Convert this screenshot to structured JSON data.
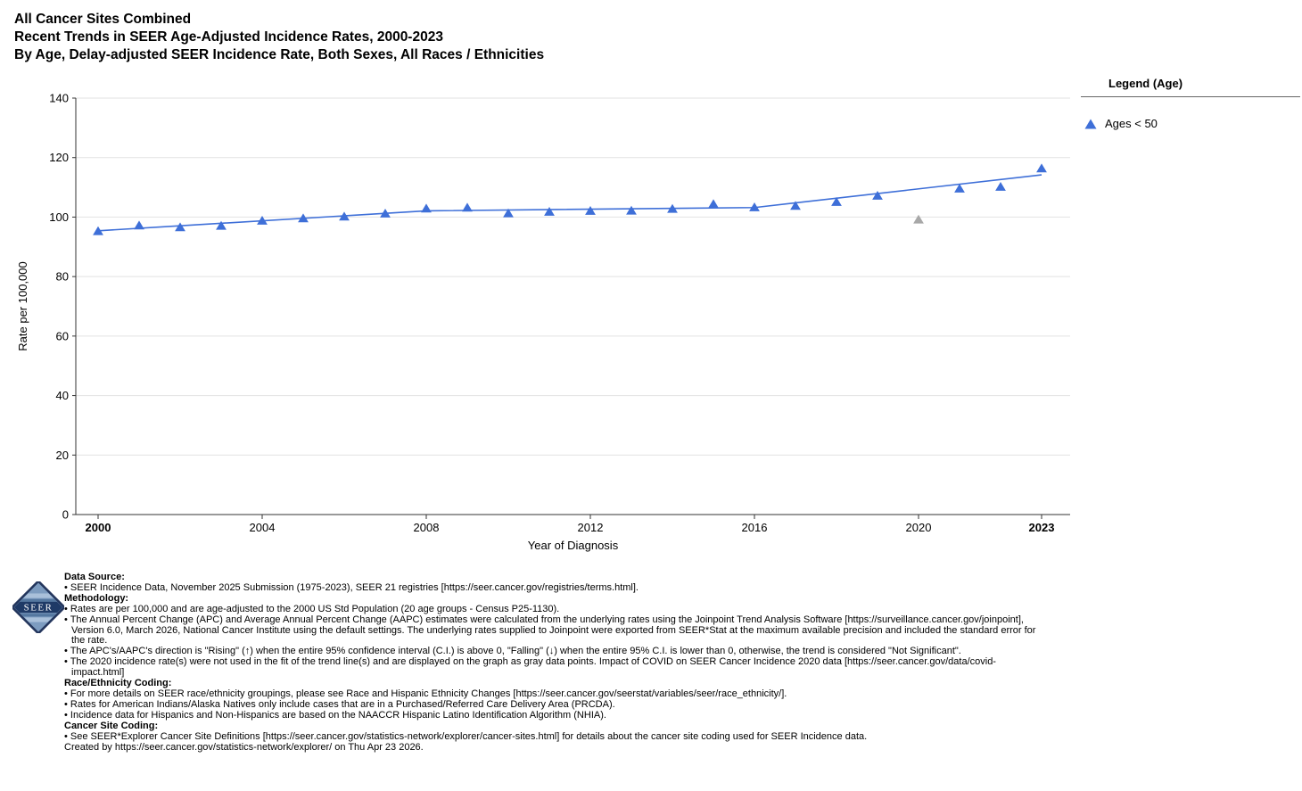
{
  "header": {
    "title_line1": "All Cancer Sites Combined",
    "title_line2": "Recent Trends in SEER Age-Adjusted Incidence Rates, 2000-2023",
    "title_line3": "By Age, Delay-adjusted SEER Incidence Rate, Both Sexes, All Races / Ethnicities"
  },
  "legend": {
    "title": "Legend (Age)",
    "items": [
      {
        "label": "Ages < 50",
        "color": "#3E6FD8",
        "marker": "triangle"
      }
    ]
  },
  "chart_data": {
    "type": "line",
    "title": "Recent Trends in SEER Age-Adjusted Incidence Rates, 2000-2023",
    "xlabel": "Year of Diagnosis",
    "ylabel": "Rate per 100,000",
    "ylim": [
      0,
      140
    ],
    "yticks": [
      0,
      20,
      40,
      60,
      80,
      100,
      120,
      140
    ],
    "xticks": [
      2000,
      2004,
      2008,
      2012,
      2016,
      2020,
      2023
    ],
    "xticks_bold": [
      2000,
      2023
    ],
    "grid": "horizontal",
    "legend_position": "right",
    "x_start": 2000,
    "series": [
      {
        "name": "Ages < 50",
        "color": "#3E6FD8",
        "x": [
          2000,
          2001,
          2002,
          2003,
          2004,
          2005,
          2006,
          2007,
          2008,
          2009,
          2010,
          2011,
          2012,
          2013,
          2014,
          2015,
          2016,
          2017,
          2018,
          2019,
          2020,
          2021,
          2022,
          2023
        ],
        "y": [
          95.3,
          97.2,
          96.6,
          97.1,
          98.8,
          99.6,
          100.2,
          101.2,
          102.9,
          103.2,
          101.3,
          101.8,
          102.1,
          102.2,
          102.8,
          104.4,
          103.3,
          103.8,
          105.1,
          107.2,
          99.2,
          109.6,
          110.2,
          116.4
        ]
      }
    ],
    "excluded_year": 2020,
    "excluded_color": "#A8A8A8",
    "trend_segments": [
      [
        2000,
        95.4
      ],
      [
        2008,
        102.1
      ],
      [
        2016,
        103.2
      ],
      [
        2023,
        114.2
      ]
    ]
  },
  "footer": {
    "logo_text": "SEER",
    "lines": [
      {
        "style": "heading",
        "text": "Data Source:"
      },
      {
        "style": "bullet",
        "text": "SEER Incidence Data, November 2025 Submission (1975-2023), SEER 21 registries [https://seer.cancer.gov/registries/terms.html]."
      },
      {
        "style": "heading",
        "text": "Methodology:"
      },
      {
        "style": "bullet",
        "text": "Rates are per 100,000 and are age-adjusted to the 2000 US Std Population (20 age groups - Census P25-1130)."
      },
      {
        "style": "bullet",
        "text": "The Annual Percent Change (APC) and Average Annual Percent Change (AAPC) estimates were calculated from the underlying rates using the Joinpoint Trend Analysis Software [https://surveillance.cancer.gov/joinpoint], Version 6.0, March 2026, National Cancer Institute using the default settings. The underlying rates supplied to Joinpoint were exported from SEER*Stat at the maximum available precision and included the standard error for the rate."
      },
      {
        "style": "bullet",
        "text": "The APC's/AAPC's direction is \"Rising\" (↑) when the entire 95% confidence interval (C.I.) is above 0, \"Falling\" (↓) when the entire 95% C.I. is lower than 0, otherwise, the trend is considered \"Not Significant\"."
      },
      {
        "style": "bullet",
        "text": "The 2020 incidence rate(s) were not used in the fit of the trend line(s) and are displayed on the graph as gray data points. Impact of COVID on SEER Cancer Incidence 2020 data [https://seer.cancer.gov/data/covid-impact.html]"
      },
      {
        "style": "heading",
        "text": "Race/Ethnicity Coding:"
      },
      {
        "style": "bullet",
        "text": "For more details on SEER race/ethnicity groupings, please see Race and Hispanic Ethnicity Changes [https://seer.cancer.gov/seerstat/variables/seer/race_ethnicity/]."
      },
      {
        "style": "bullet",
        "text": "Rates for American Indians/Alaska Natives only include cases that are in a Purchased/Referred Care Delivery Area (PRCDA)."
      },
      {
        "style": "bullet",
        "text": "Incidence data for Hispanics and Non-Hispanics are based on the NAACCR Hispanic Latino Identification Algorithm (NHIA)."
      },
      {
        "style": "heading",
        "text": "Cancer Site Coding:"
      },
      {
        "style": "bullet",
        "text": "See SEER*Explorer Cancer Site Definitions [https://seer.cancer.gov/statistics-network/explorer/cancer-sites.html] for details about the cancer site coding used for SEER Incidence data."
      },
      {
        "style": "plain",
        "text": "Created by https://seer.cancer.gov/statistics-network/explorer/ on Thu Apr 23 2026."
      }
    ]
  }
}
